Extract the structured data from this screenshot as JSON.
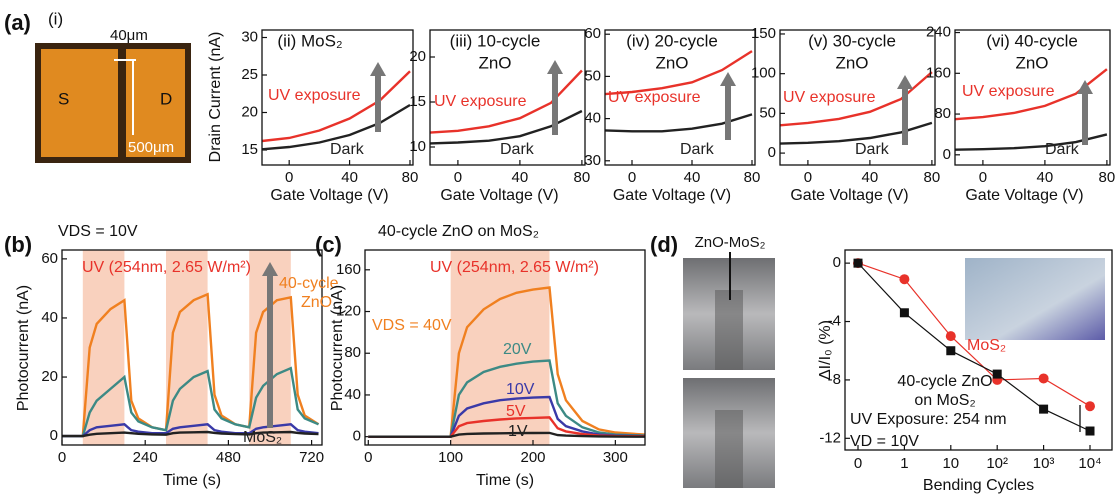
{
  "panel_labels": [
    "(a)",
    "(b)",
    "(c)",
    "(d)"
  ],
  "micrograph": {
    "label": "(i)",
    "texts": [
      "S",
      "D",
      "40μm",
      "500μm"
    ]
  },
  "photo_label": "ZnO-MoS₂",
  "chart_data": [
    {
      "type": "line",
      "title": [
        "(ii) MoS₂"
      ],
      "ylabel": "Drain Current (nA)",
      "xlabel": "Gate Voltage (V)",
      "x": [
        -18,
        0,
        20,
        40,
        60,
        80
      ],
      "xlim": [
        -18,
        82
      ],
      "xticks": [
        0,
        40,
        80
      ],
      "ylim": [
        13,
        31
      ],
      "yticks": [
        15,
        20,
        25,
        30
      ],
      "series": [
        {
          "name": "UV exposure",
          "color": "#e8322a",
          "values": [
            16.2,
            16.6,
            17.6,
            19.2,
            21.6,
            25.5
          ]
        },
        {
          "name": "Dark",
          "color": "#222222",
          "values": [
            15.1,
            15.4,
            16.0,
            17.0,
            18.6,
            21.0
          ]
        }
      ]
    },
    {
      "type": "line",
      "title": [
        "(iii) 10-cycle",
        "ZnO"
      ],
      "xlabel": "Gate Voltage (V)",
      "x": [
        -18,
        0,
        20,
        40,
        60,
        80
      ],
      "xlim": [
        -18,
        82
      ],
      "xticks": [
        0,
        40,
        80
      ],
      "ylim": [
        8,
        23
      ],
      "yticks": [
        10,
        15,
        20
      ],
      "series": [
        {
          "name": "UV exposure",
          "color": "#e8322a",
          "values": [
            11.6,
            11.8,
            12.3,
            13.2,
            14.9,
            18.5
          ]
        },
        {
          "name": "Dark",
          "color": "#222222",
          "values": [
            10.4,
            10.5,
            10.7,
            11.2,
            12.3,
            14.0
          ]
        }
      ]
    },
    {
      "type": "line",
      "title": [
        "(iv) 20-cycle",
        "ZnO"
      ],
      "xlabel": "Gate Voltage (V)",
      "x": [
        -18,
        0,
        20,
        40,
        60,
        80
      ],
      "xlim": [
        -18,
        82
      ],
      "xticks": [
        0,
        40,
        80
      ],
      "ylim": [
        29,
        61
      ],
      "yticks": [
        30,
        40,
        50,
        60
      ],
      "series": [
        {
          "name": "UV exposure",
          "color": "#e8322a",
          "values": [
            45.8,
            46.3,
            47.2,
            48.6,
            51.5,
            56.0
          ]
        },
        {
          "name": "Dark",
          "color": "#222222",
          "values": [
            37.2,
            37.0,
            37.0,
            37.6,
            38.8,
            41.0
          ]
        }
      ]
    },
    {
      "type": "line",
      "title": [
        "(v) 30-cycle",
        "ZnO"
      ],
      "xlabel": "Gate Voltage (V)",
      "x": [
        -18,
        0,
        20,
        40,
        60,
        80
      ],
      "xlim": [
        -18,
        82
      ],
      "xticks": [
        0,
        40,
        80
      ],
      "ylim": [
        -15,
        155
      ],
      "yticks": [
        0,
        50,
        100,
        150
      ],
      "series": [
        {
          "name": "UV exposure",
          "color": "#e8322a",
          "values": [
            35,
            38,
            43,
            52,
            68,
            102
          ]
        },
        {
          "name": "Dark",
          "color": "#222222",
          "values": [
            12,
            13,
            15,
            19,
            26,
            38
          ]
        }
      ]
    },
    {
      "type": "line",
      "title": [
        "(vi) 40-cycle",
        "ZnO"
      ],
      "xlabel": "Gate Voltage (V)",
      "x": [
        -18,
        0,
        20,
        40,
        60,
        80
      ],
      "xlim": [
        -18,
        82
      ],
      "xticks": [
        0,
        40,
        80
      ],
      "ylim": [
        -20,
        245
      ],
      "yticks": [
        0,
        80,
        160,
        240
      ],
      "series": [
        {
          "name": "UV exposure",
          "color": "#e8322a",
          "values": [
            70,
            74,
            82,
            96,
            120,
            168
          ]
        },
        {
          "name": "Dark",
          "color": "#222222",
          "values": [
            10,
            11,
            13,
            17,
            25,
            40
          ]
        }
      ]
    },
    {
      "type": "line",
      "ylabel": "Photocurrent (nA)",
      "xlabel": "Time (s)",
      "annotations": [
        "VDS = 10V",
        "UV (254nm, 2.65 W/m²)"
      ],
      "uv_periods": [
        [
          60,
          180
        ],
        [
          300,
          420
        ],
        [
          540,
          660
        ]
      ],
      "shade_color": "#f7c2a8",
      "x": [
        0,
        40,
        60,
        80,
        100,
        140,
        180,
        200,
        220,
        260,
        300,
        320,
        340,
        380,
        420,
        440,
        460,
        500,
        540,
        560,
        580,
        620,
        660,
        680,
        700,
        740
      ],
      "xlim": [
        0,
        750
      ],
      "xticks": [
        0,
        240,
        480,
        720
      ],
      "ylim": [
        -3,
        63
      ],
      "yticks": [
        0,
        20,
        40,
        60
      ],
      "series": [
        {
          "name": [
            "40-cycle",
            "ZnO"
          ],
          "color": "#f08020",
          "values": [
            0,
            0,
            0,
            30,
            38,
            43,
            46,
            12,
            6,
            3,
            2,
            35,
            42,
            46,
            48,
            14,
            7,
            4,
            3,
            35,
            42,
            46,
            47,
            14,
            7,
            4
          ]
        },
        {
          "color": "#3d8a85",
          "values": [
            0,
            0,
            0,
            8,
            12,
            16,
            20,
            8,
            5,
            3,
            2,
            12,
            16,
            20,
            22,
            9,
            6,
            4,
            3,
            13,
            17,
            21,
            23,
            9,
            6,
            4
          ]
        },
        {
          "color": "#3a3aa8",
          "values": [
            0,
            0,
            0,
            2,
            3,
            3.5,
            4,
            2,
            1.5,
            1,
            1,
            2.5,
            3,
            3.5,
            4,
            2,
            1.5,
            1,
            1,
            2.5,
            3,
            3.5,
            4,
            2,
            1.5,
            1
          ]
        },
        {
          "name": "MoS₂",
          "color": "#222222",
          "values": [
            0,
            0,
            0,
            0.5,
            0.8,
            1,
            1.2,
            1,
            0.8,
            0.6,
            0.5,
            1,
            1.2,
            1.3,
            1.4,
            1.1,
            0.9,
            0.7,
            0.6,
            1,
            1.2,
            1.3,
            1.4,
            1.1,
            0.9,
            0.7
          ]
        }
      ]
    },
    {
      "type": "line",
      "title": [
        "40-cycle ZnO on MoS₂"
      ],
      "ylabel": "Photocurrent (nA)",
      "xlabel": "Time (s)",
      "annotations": [
        "UV (254nm, 2.65 W/m²)"
      ],
      "uv_periods": [
        [
          100,
          220
        ]
      ],
      "shade_color": "#f7c2a8",
      "x": [
        0,
        90,
        100,
        110,
        120,
        140,
        160,
        180,
        200,
        220,
        230,
        240,
        260,
        280,
        300,
        336
      ],
      "xlim": [
        -4,
        336
      ],
      "xticks": [
        0,
        100,
        200,
        300
      ],
      "ylim": [
        -8,
        179
      ],
      "yticks": [
        0,
        40,
        80,
        120,
        160
      ],
      "series": [
        {
          "name": "VDS = 40V",
          "color": "#f08020",
          "values": [
            0,
            0,
            0,
            80,
            105,
            122,
            132,
            138,
            141,
            143,
            60,
            35,
            15,
            7,
            4,
            2
          ]
        },
        {
          "name": "20V",
          "color": "#3d8a85",
          "values": [
            0,
            0,
            0,
            40,
            52,
            62,
            67,
            70,
            72,
            73,
            32,
            20,
            9,
            4,
            2,
            1
          ]
        },
        {
          "name": "10V",
          "color": "#3a3aa8",
          "values": [
            0,
            0,
            0,
            20,
            27,
            32,
            35,
            36.5,
            37.5,
            38,
            17,
            10,
            5,
            2,
            1,
            0.5
          ]
        },
        {
          "name": "5V",
          "color": "#e8322a",
          "values": [
            0,
            0,
            0,
            10,
            13,
            15,
            16.5,
            17.5,
            18,
            18.5,
            8,
            5,
            2.5,
            1,
            0.5,
            0.3
          ]
        },
        {
          "name": "1V",
          "color": "#222222",
          "values": [
            0,
            0,
            0,
            2,
            2.6,
            3,
            3.2,
            3.4,
            3.5,
            3.6,
            1.5,
            1,
            0.5,
            0.2,
            0.1,
            0
          ]
        }
      ]
    },
    {
      "type": "line",
      "markers": true,
      "ylabel": "ΔI/I₀ (%)",
      "xlabel": "Bending Cycles",
      "annotations": [
        "UV Exposure: 254 nm",
        "VD = 10V"
      ],
      "categories": [
        "0",
        "1",
        "10",
        "10²",
        "10³",
        "10⁴"
      ],
      "ylim": [
        -12.8,
        0.9
      ],
      "yticks": [
        0,
        -4,
        -8,
        -12
      ],
      "series": [
        {
          "name": "MoS₂",
          "color": "#e8322a",
          "marker": "circle",
          "values": [
            0,
            -1.1,
            -5,
            -8,
            -7.9,
            -9.8
          ]
        },
        {
          "name": [
            "40-cycle ZnO",
            "on MoS₂"
          ],
          "color": "#111111",
          "marker": "square",
          "values": [
            0,
            -3.4,
            -6,
            -7.6,
            -10,
            -11.5
          ]
        }
      ]
    }
  ]
}
